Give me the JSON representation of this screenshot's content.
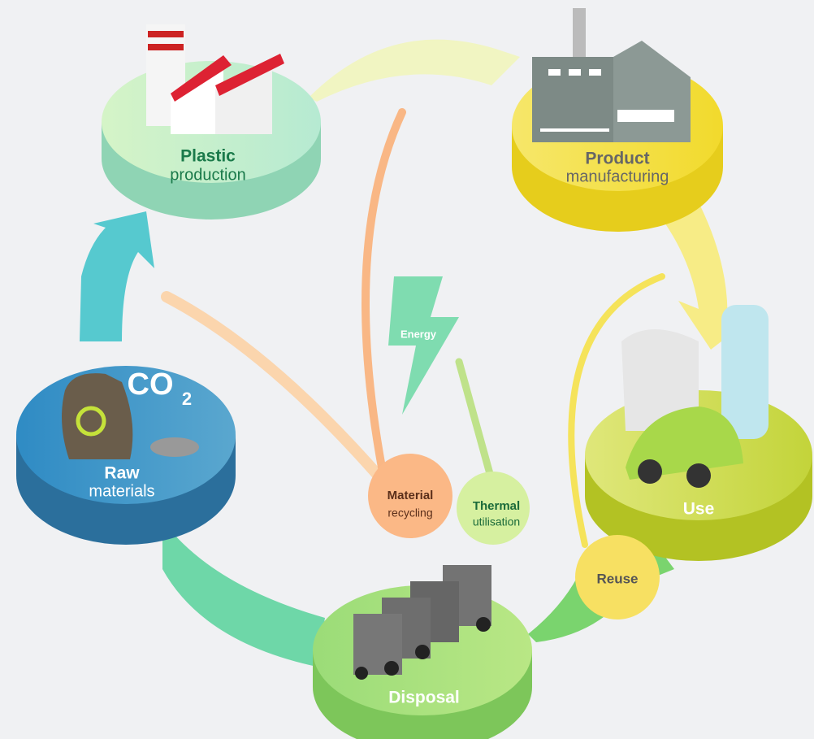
{
  "nodes": [
    {
      "title": "Plastic",
      "subtitle": "production"
    },
    {
      "title": "Product",
      "subtitle": "manufacturing"
    },
    {
      "title": "Use"
    },
    {
      "title": "Disposal"
    },
    {
      "title": "Raw",
      "subtitle": "materials"
    }
  ],
  "recycling": [
    {
      "title": "Material",
      "subtitle": "recycling"
    },
    {
      "title": "Thermal",
      "subtitle": "utilisation"
    },
    {
      "title": "Reuse"
    }
  ],
  "energy": "Energy",
  "icon": {
    "co": "CO",
    "sub": "2"
  }
}
